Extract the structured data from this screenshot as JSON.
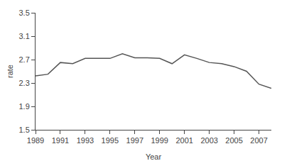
{
  "chart_data": {
    "type": "line",
    "x": [
      1989,
      1990,
      1991,
      1992,
      1993,
      1994,
      1995,
      1996,
      1997,
      1998,
      1999,
      2000,
      2001,
      2002,
      2003,
      2004,
      2005,
      2006,
      2007,
      2008
    ],
    "values": [
      2.42,
      2.45,
      2.65,
      2.63,
      2.72,
      2.72,
      2.72,
      2.8,
      2.73,
      2.73,
      2.72,
      2.63,
      2.78,
      2.72,
      2.65,
      2.63,
      2.58,
      2.5,
      2.28,
      2.21
    ],
    "color": "#555555",
    "xlabel": "Year",
    "ylabel": "rate",
    "xlim": [
      1989,
      2008
    ],
    "ylim": [
      1.5,
      3.5
    ],
    "xticks": [
      1989,
      1991,
      1993,
      1995,
      1997,
      1999,
      2001,
      2003,
      2005,
      2007
    ],
    "yticks": [
      1.5,
      1.9,
      2.3,
      2.7,
      3.1,
      3.5
    ],
    "grid": false
  }
}
